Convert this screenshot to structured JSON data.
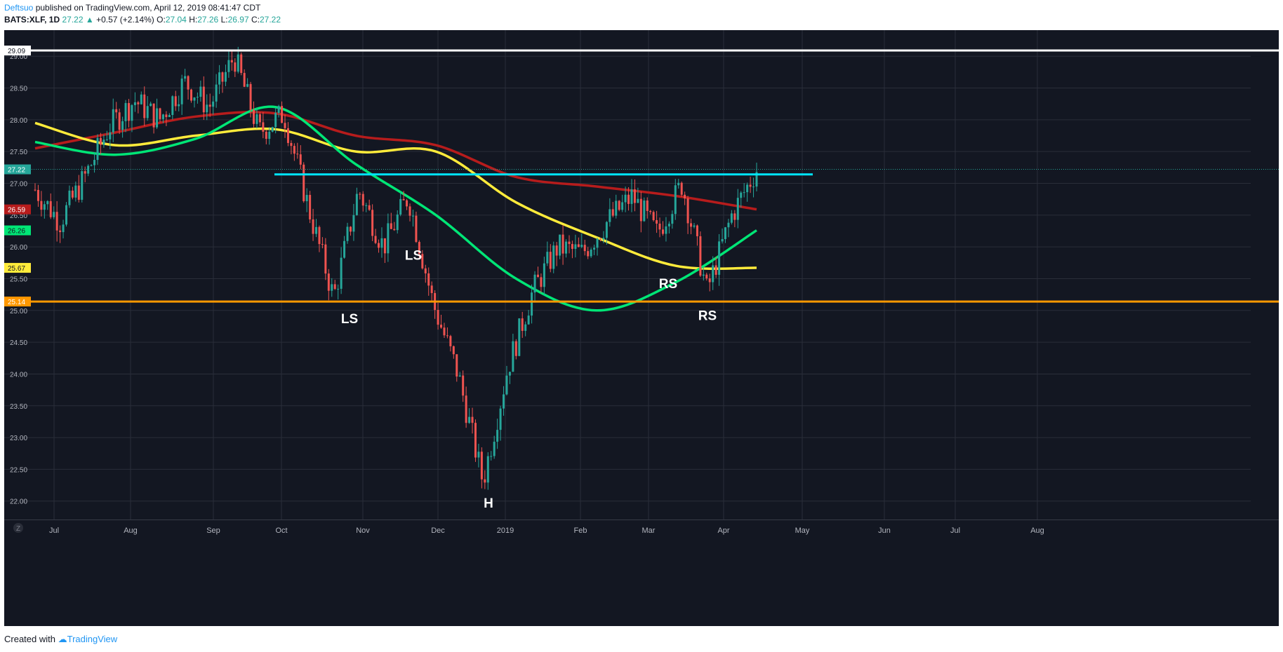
{
  "header": {
    "author": "Deftsuo",
    "published": " published on TradingView.com, April 12, 2019 08:41:47 CDT",
    "symbol": "BATS:XLF, 1D",
    "last": "27.22",
    "change": "+0.57 (+2.14%)",
    "o_label": "O:",
    "o": "27.04",
    "h_label": "H:",
    "h": "27.26",
    "l_label": "L:",
    "l": "26.97",
    "c_label": "C:",
    "c": "27.22"
  },
  "footer": {
    "created_with": "Created with",
    "brand": "TradingView"
  },
  "colors": {
    "background": "#131722",
    "grid": "#2a2e39",
    "up": "#26a69a",
    "down": "#ef5350",
    "ma_red": "#b71c1c",
    "ma_yellow": "#ffeb3b",
    "ma_green": "#00e676",
    "resistance": "#00e5ff",
    "support": "#ff9800",
    "top_line": "#ffffff"
  },
  "chart_data": {
    "type": "candlestick",
    "ylim": [
      21.6,
      29.3
    ],
    "y_ticks": [
      "22.00",
      "22.50",
      "23.00",
      "23.50",
      "24.00",
      "24.50",
      "25.00",
      "25.50",
      "26.00",
      "26.50",
      "27.00",
      "27.50",
      "28.00",
      "28.50",
      "29.00"
    ],
    "x_axis_labels": [
      "Jul",
      "Aug",
      "Sep",
      "Oct",
      "Nov",
      "Dec",
      "2019",
      "Feb",
      "Mar",
      "Apr",
      "May",
      "Jun",
      "Jul",
      "Aug"
    ],
    "axis_button": "Z",
    "price_badges": [
      {
        "value": "29.09",
        "color": "#ffffff",
        "text_color": "#131722"
      },
      {
        "value": "27.22",
        "color": "#26a69a",
        "text_color": "#ffffff"
      },
      {
        "value": "26.59",
        "color": "#b71c1c",
        "text_color": "#ffffff"
      },
      {
        "value": "26.26",
        "color": "#00e676",
        "text_color": "#131722"
      },
      {
        "value": "25.67",
        "color": "#ffeb3b",
        "text_color": "#131722"
      },
      {
        "value": "25.14",
        "color": "#ff9800",
        "text_color": "#ffffff"
      }
    ],
    "horizontal_lines": [
      {
        "price": 29.09,
        "color": "#ffffff",
        "from": "start",
        "to": "end"
      },
      {
        "price": 27.14,
        "color": "#00e5ff",
        "from": "Oct",
        "to": "May"
      },
      {
        "price": 25.14,
        "color": "#ff9800",
        "from": "start",
        "to": "end"
      }
    ],
    "annotations": [
      {
        "text": "LS",
        "month": "Oct",
        "price": 24.8
      },
      {
        "text": "LS",
        "month": "Nov",
        "price": 25.8
      },
      {
        "text": "H",
        "month": "2019",
        "price": 21.9
      },
      {
        "text": "RS",
        "month": "Mar",
        "price": 25.35
      },
      {
        "text": "RS",
        "month": "Mar",
        "price": 24.85
      }
    ],
    "close_path": [
      {
        "month": "Jul",
        "close": 26.9
      },
      {
        "month": "Jul",
        "close": 26.4
      },
      {
        "month": "Jul",
        "close": 27.1
      },
      {
        "month": "Aug",
        "close": 27.9
      },
      {
        "month": "Aug",
        "close": 28.3
      },
      {
        "month": "Aug",
        "close": 28.0
      },
      {
        "month": "Sep",
        "close": 28.6
      },
      {
        "month": "Sep",
        "close": 28.2
      },
      {
        "month": "Sep",
        "close": 29.0
      },
      {
        "month": "Oct",
        "close": 27.8
      },
      {
        "month": "Oct",
        "close": 28.1
      },
      {
        "month": "Oct",
        "close": 26.6
      },
      {
        "month": "Nov",
        "close": 25.2
      },
      {
        "month": "Nov",
        "close": 26.9
      },
      {
        "month": "Nov",
        "close": 26.0
      },
      {
        "month": "Dec",
        "close": 26.8
      },
      {
        "month": "Dec",
        "close": 25.1
      },
      {
        "month": "Dec",
        "close": 24.0
      },
      {
        "month": "2019",
        "close": 22.3
      },
      {
        "month": "2019",
        "close": 24.1
      },
      {
        "month": "2019",
        "close": 25.3
      },
      {
        "month": "Feb",
        "close": 26.0
      },
      {
        "month": "Feb",
        "close": 25.9
      },
      {
        "month": "Feb",
        "close": 26.4
      },
      {
        "month": "Mar",
        "close": 26.8
      },
      {
        "month": "Mar",
        "close": 26.2
      },
      {
        "month": "Mar",
        "close": 27.0
      },
      {
        "month": "Apr",
        "close": 25.3
      },
      {
        "month": "Apr",
        "close": 26.5
      },
      {
        "month": "Apr",
        "close": 27.22
      }
    ],
    "moving_averages": [
      {
        "color": "#b71c1c",
        "values": [
          {
            "month": "Jul",
            "value": 27.55
          },
          {
            "month": "Aug",
            "value": 27.8
          },
          {
            "month": "Sep",
            "value": 28.05
          },
          {
            "month": "Oct",
            "value": 28.1
          },
          {
            "month": "Nov",
            "value": 27.75
          },
          {
            "month": "Dec",
            "value": 27.6
          },
          {
            "month": "2019",
            "value": 27.1
          },
          {
            "month": "Feb",
            "value": 26.95
          },
          {
            "month": "Mar",
            "value": 26.8
          },
          {
            "month": "Apr",
            "value": 26.59
          }
        ]
      },
      {
        "color": "#ffeb3b",
        "values": [
          {
            "month": "Jul",
            "value": 27.95
          },
          {
            "month": "Aug",
            "value": 27.6
          },
          {
            "month": "Sep",
            "value": 27.75
          },
          {
            "month": "Oct",
            "value": 27.85
          },
          {
            "month": "Nov",
            "value": 27.5
          },
          {
            "month": "Dec",
            "value": 27.5
          },
          {
            "month": "2019",
            "value": 26.7
          },
          {
            "month": "Feb",
            "value": 26.15
          },
          {
            "month": "Mar",
            "value": 25.7
          },
          {
            "month": "Apr",
            "value": 25.67
          }
        ]
      },
      {
        "color": "#00e676",
        "values": [
          {
            "month": "Jul",
            "value": 27.65
          },
          {
            "month": "Aug",
            "value": 27.45
          },
          {
            "month": "Sep",
            "value": 27.7
          },
          {
            "month": "Oct",
            "value": 28.2
          },
          {
            "month": "Nov",
            "value": 27.3
          },
          {
            "month": "Dec",
            "value": 26.5
          },
          {
            "month": "2019",
            "value": 25.5
          },
          {
            "month": "Feb",
            "value": 25.0
          },
          {
            "month": "Mar",
            "value": 25.45
          },
          {
            "month": "Apr",
            "value": 26.26
          }
        ]
      }
    ]
  }
}
